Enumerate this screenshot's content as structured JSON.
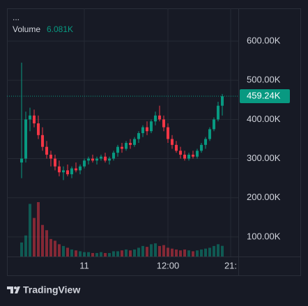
{
  "chart_data": {
    "type": "candlestick",
    "symbol": "...",
    "volume_title": "Volume",
    "volume_value": {
      "value": 6081,
      "label": "6.081K"
    },
    "categories": [
      null,
      null,
      null,
      null,
      null,
      null,
      null,
      null,
      null,
      null,
      null,
      null,
      null,
      null,
      null,
      "11",
      null,
      null,
      null,
      null,
      null,
      null,
      null,
      null,
      null,
      null,
      null,
      null,
      null,
      null,
      null,
      null,
      null,
      null,
      null,
      "12:00",
      null,
      null,
      null,
      null,
      null,
      null,
      null,
      null,
      null,
      null,
      null,
      null,
      null,
      null,
      "21:"
    ],
    "open": [
      290000,
      300000,
      400000,
      410000,
      390000,
      360000,
      330000,
      310000,
      300000,
      280000,
      265000,
      270000,
      260000,
      275000,
      270000,
      280000,
      295000,
      300000,
      295000,
      300000,
      305000,
      295000,
      300000,
      315000,
      330000,
      325000,
      340000,
      335000,
      350000,
      365000,
      380000,
      370000,
      395000,
      410000,
      400000,
      380000,
      350000,
      335000,
      320000,
      310000,
      300000,
      310000,
      305000,
      320000,
      335000,
      350000,
      375000,
      400000,
      435000,
      null,
      null
    ],
    "high": [
      545000,
      420000,
      430000,
      425000,
      410000,
      380000,
      345000,
      320000,
      310000,
      295000,
      280000,
      285000,
      280000,
      290000,
      285000,
      300000,
      305000,
      310000,
      305000,
      310000,
      315000,
      305000,
      320000,
      335000,
      340000,
      345000,
      350000,
      355000,
      370000,
      385000,
      395000,
      400000,
      420000,
      435000,
      410000,
      390000,
      360000,
      345000,
      330000,
      320000,
      315000,
      320000,
      325000,
      340000,
      355000,
      380000,
      405000,
      445000,
      465000,
      null,
      null
    ],
    "low": [
      250000,
      290000,
      370000,
      380000,
      350000,
      320000,
      300000,
      280000,
      270000,
      255000,
      245000,
      255000,
      250000,
      265000,
      260000,
      275000,
      285000,
      290000,
      285000,
      295000,
      290000,
      285000,
      295000,
      305000,
      315000,
      320000,
      325000,
      330000,
      340000,
      355000,
      360000,
      365000,
      385000,
      395000,
      370000,
      340000,
      325000,
      315000,
      300000,
      295000,
      295000,
      300000,
      300000,
      315000,
      325000,
      345000,
      370000,
      395000,
      410000,
      null,
      null
    ],
    "close": [
      300000,
      400000,
      410000,
      390000,
      360000,
      330000,
      310000,
      300000,
      280000,
      265000,
      270000,
      260000,
      275000,
      270000,
      280000,
      295000,
      300000,
      295000,
      300000,
      305000,
      295000,
      300000,
      315000,
      330000,
      325000,
      340000,
      335000,
      350000,
      365000,
      380000,
      370000,
      395000,
      410000,
      400000,
      380000,
      350000,
      335000,
      320000,
      310000,
      300000,
      310000,
      305000,
      320000,
      335000,
      350000,
      375000,
      400000,
      435000,
      459240,
      null,
      null
    ],
    "volume": [
      8000,
      12000,
      30000,
      22000,
      31000,
      18000,
      15000,
      10000,
      9000,
      7000,
      6000,
      5000,
      4000,
      3500,
      3000,
      2500,
      2500,
      2000,
      2000,
      2500,
      2000,
      2000,
      3000,
      3000,
      3500,
      4000,
      3500,
      4000,
      5000,
      6000,
      5500,
      7000,
      7500,
      6000,
      6500,
      5000,
      4500,
      4000,
      3500,
      4000,
      3500,
      3000,
      3500,
      4000,
      4500,
      5000,
      6000,
      7000,
      6081,
      null,
      null
    ],
    "up_color": "#089981",
    "down_color": "#f23645",
    "last_price": {
      "value": 459240,
      "label": "459.24K"
    },
    "ylim": [
      50000,
      683600
    ],
    "yticks": [
      {
        "value": 100000,
        "label": "100.00K"
      },
      {
        "value": 200000,
        "label": "200.00K"
      },
      {
        "value": 300000,
        "label": "300.00K"
      },
      {
        "value": 400000,
        "label": "400.00K"
      },
      {
        "value": 500000,
        "label": "500.00K"
      },
      {
        "value": 600000,
        "label": "600.00K"
      }
    ],
    "grid": true
  },
  "footer": {
    "brand": "TradingView"
  }
}
